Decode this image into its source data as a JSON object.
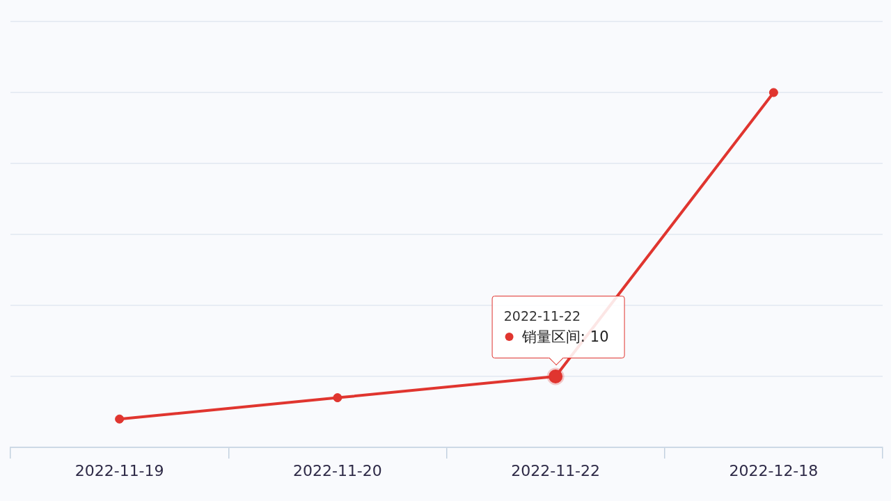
{
  "chart_data": {
    "type": "line",
    "categories": [
      "2022-11-19",
      "2022-11-20",
      "2022-11-22",
      "2022-12-18"
    ],
    "series": [
      {
        "name": "销量区间:",
        "color": "#e0352f",
        "values": [
          4,
          7,
          10,
          50
        ],
        "value_labels": [
          null,
          null,
          "10",
          null
        ]
      }
    ],
    "ylim": [
      0,
      60
    ],
    "yticks": [
      {
        "value": 0,
        "label": null
      },
      {
        "value": 10,
        "label": null
      },
      {
        "value": 20,
        "label": null
      },
      {
        "value": 30,
        "label": null
      },
      {
        "value": 40,
        "label": null
      },
      {
        "value": 50,
        "label": null
      },
      {
        "value": 60,
        "label": null
      }
    ],
    "tick_labels": "x",
    "grid": "y",
    "marker": "circle"
  }
}
